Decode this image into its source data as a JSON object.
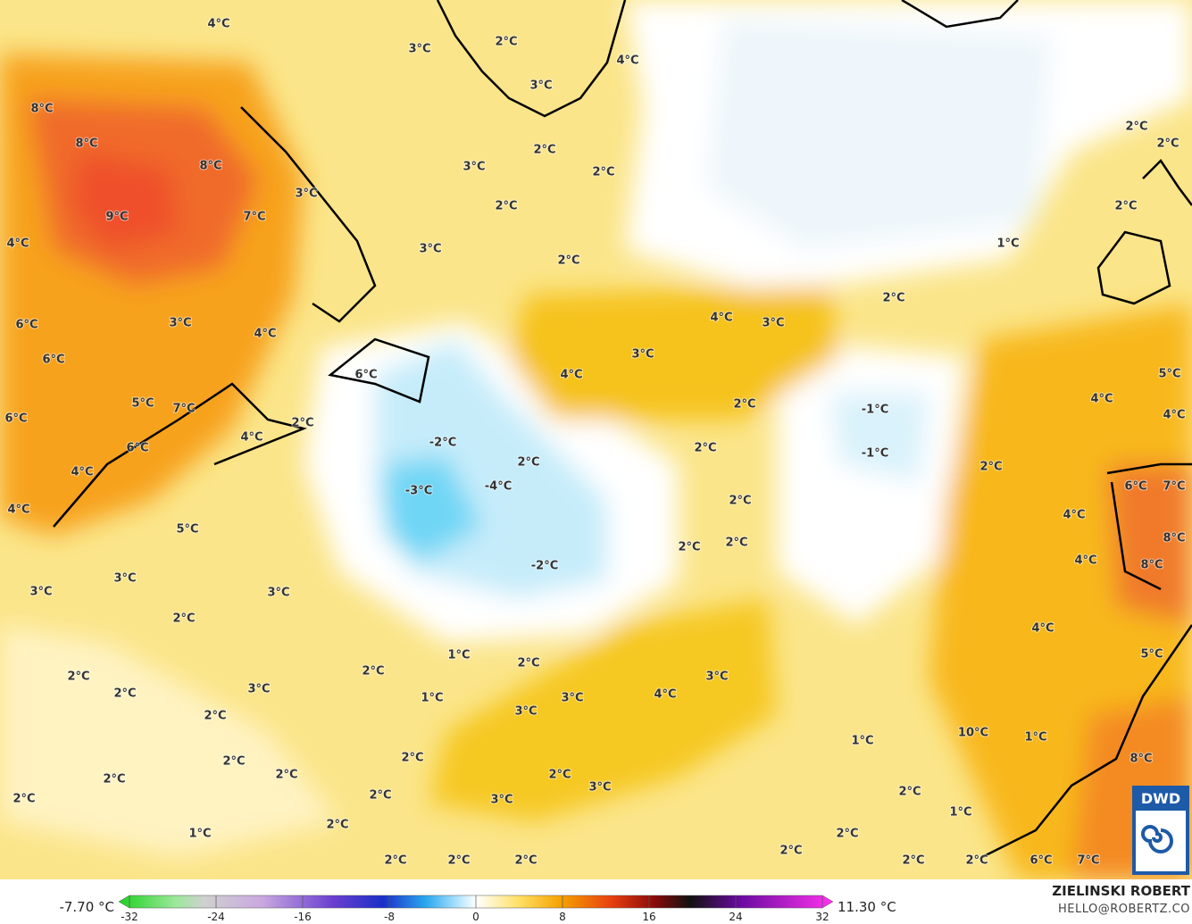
{
  "map": {
    "labels": [
      "4°C",
      "3°C",
      "2°C",
      "4°C",
      "3°C",
      "8°C",
      "8°C",
      "8°C",
      "3°C",
      "2°C",
      "2°C",
      "2°C",
      "2°C",
      "9°C",
      "7°C",
      "3°C",
      "2°C",
      "2°C",
      "4°C",
      "3°C",
      "2°C",
      "1°C",
      "2°C",
      "6°C",
      "3°C",
      "4°C",
      "4°C",
      "3°C",
      "3°C",
      "6°C",
      "6°C",
      "4°C",
      "5°C",
      "6°C",
      "5°C",
      "7°C",
      "2°C",
      "-1°C",
      "4°C",
      "4°C",
      "4°C",
      "6°C",
      "2°C",
      "-2°C",
      "2°C",
      "-1°C",
      "4°C",
      "2°C",
      "2°C",
      "-3°C",
      "-4°C",
      "2°C",
      "6°C",
      "7°C",
      "4°C",
      "4°C",
      "5°C",
      "2°C",
      "2°C",
      "8°C",
      "-2°C",
      "4°C",
      "8°C",
      "3°C",
      "3°C",
      "3°C",
      "2°C",
      "4°C",
      "2°C",
      "1°C",
      "2°C",
      "5°C",
      "2°C",
      "3°C",
      "4°C",
      "2°C",
      "3°C",
      "1°C",
      "3°C",
      "3°C",
      "2°C",
      "10°C",
      "1°C",
      "1°C",
      "2°C",
      "2°C",
      "8°C",
      "2°C",
      "2°C",
      "2°C",
      "3°C",
      "2°C",
      "2°C",
      "3°C",
      "2°C",
      "1°C",
      "2°C",
      "1°C",
      "2°C",
      "2°C",
      "2°C",
      "2°C",
      "2°C",
      "2°C",
      "2°C",
      "6°C",
      "7°C"
    ]
  },
  "colorbar": {
    "min_label": "-7.70 °C",
    "max_label": "11.30 °C",
    "range": [
      -32,
      32
    ],
    "ticks": [
      -32,
      -24,
      -16,
      -8,
      0,
      8,
      16,
      24,
      32
    ]
  },
  "credits": {
    "author": "ZIELINSKI ROBERT",
    "email": "HELLO@ROBERTZ.CO"
  },
  "logo": "DWD"
}
